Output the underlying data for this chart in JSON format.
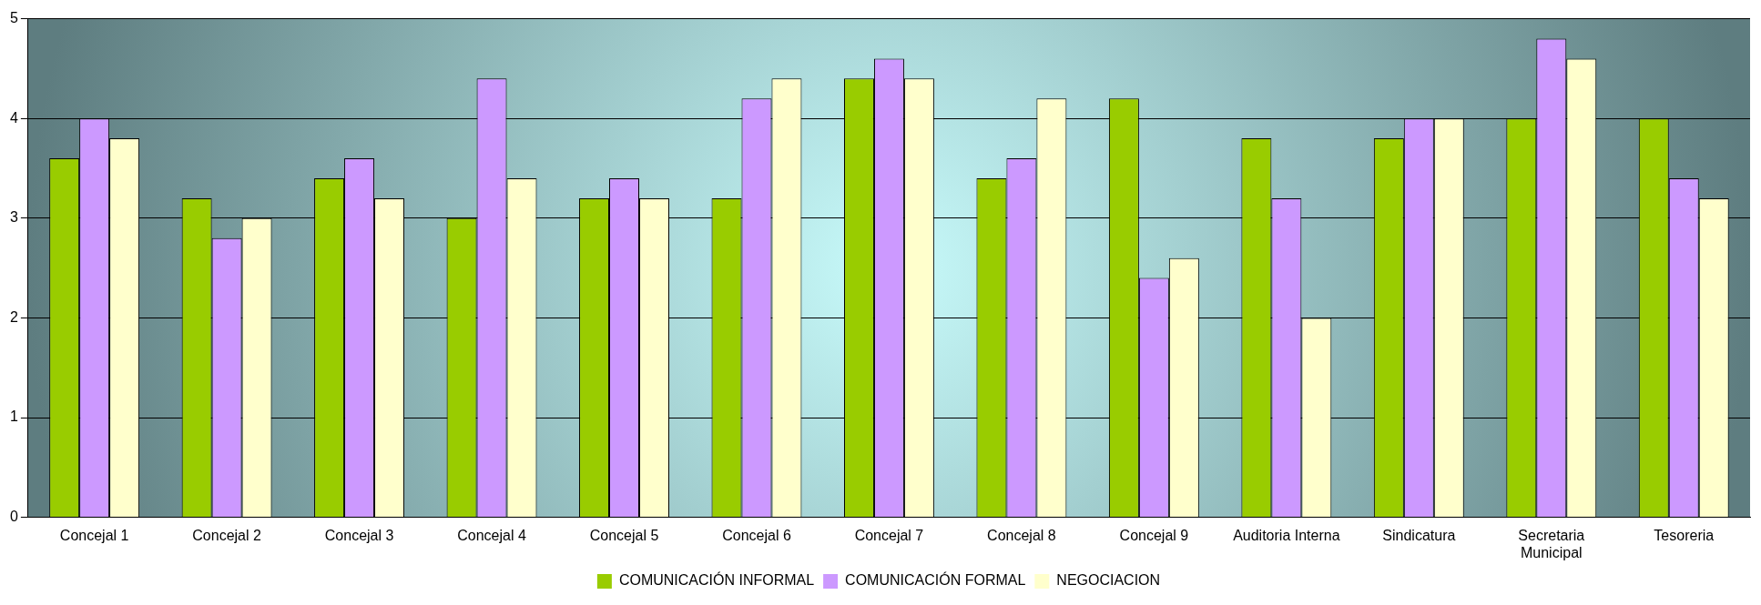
{
  "chart_data": {
    "type": "bar",
    "categories": [
      "Concejal 1",
      "Concejal 2",
      "Concejal 3",
      "Concejal 4",
      "Concejal 5",
      "Concejal 6",
      "Concejal 7",
      "Concejal 8",
      "Concejal 9",
      "Auditoria Interna",
      "Sindicatura",
      "Secretaria Municipal",
      "Tesoreria"
    ],
    "series": [
      {
        "name": "COMUNICACIÓN INFORMAL",
        "color": "#99cc00",
        "values": [
          3.6,
          3.2,
          3.4,
          3.0,
          3.2,
          3.2,
          4.4,
          3.4,
          4.2,
          3.8,
          3.8,
          4.0,
          4.0
        ]
      },
      {
        "name": "COMUNICACIÓN FORMAL",
        "color": "#cc99ff",
        "values": [
          4.0,
          2.8,
          3.6,
          4.4,
          3.4,
          4.2,
          4.6,
          3.6,
          2.4,
          3.2,
          4.0,
          4.8,
          3.4
        ]
      },
      {
        "name": "NEGOCIACION",
        "color": "#ffffcc",
        "values": [
          3.8,
          3.0,
          3.2,
          3.4,
          3.2,
          4.4,
          4.4,
          4.2,
          2.6,
          2.0,
          4.0,
          4.6,
          3.2
        ]
      }
    ],
    "ylim": [
      0,
      5
    ],
    "yticks": [
      0,
      1,
      2,
      3,
      4,
      5
    ],
    "grid": "y",
    "legend": "bottom"
  }
}
